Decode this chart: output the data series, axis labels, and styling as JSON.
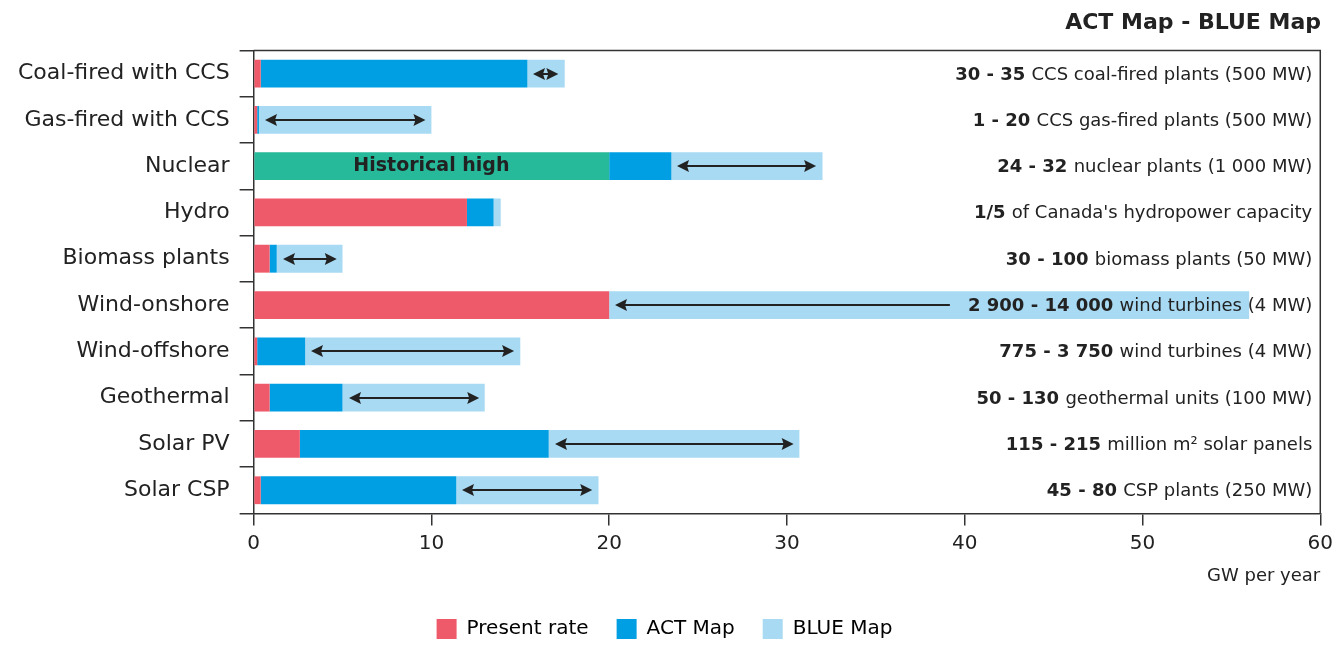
{
  "chart_data": {
    "type": "bar",
    "orientation": "horizontal",
    "stacked": true,
    "title": "ACT Map - BLUE Map",
    "xlabel": "GW per year",
    "categories": [
      "Coal-fired with CCS",
      "Gas-fired with CCS",
      "Nuclear",
      "Hydro",
      "Biomass plants",
      "Wind-onshore",
      "Wind-offshore",
      "Geothermal",
      "Solar PV",
      "Solar CSP"
    ],
    "series": [
      {
        "name": "Present rate",
        "color": "#ef5a6a",
        "colors": [
          "#ef5a6a",
          "#ef5a6a",
          "#26b99a",
          "#ef5a6a",
          "#ef5a6a",
          "#ef5a6a",
          "#ef5a6a",
          "#ef5a6a",
          "#ef5a6a",
          "#ef5a6a"
        ],
        "values": [
          0.4,
          0.2,
          20,
          12,
          0.9,
          20,
          0.2,
          0.9,
          2.6,
          0.4
        ]
      },
      {
        "name": "ACT Map",
        "color": "#009fe3",
        "values": [
          15,
          0.1,
          3.5,
          1.5,
          0.4,
          0,
          2.7,
          4.1,
          14,
          11
        ]
      },
      {
        "name": "BLUE Map",
        "color": "#a8daf3",
        "values": [
          2.1,
          9.7,
          8.5,
          0.4,
          3.7,
          36,
          12.1,
          8,
          14.1,
          8
        ]
      }
    ],
    "xlim": [
      0,
      60
    ],
    "xticks": [
      0,
      10,
      20,
      30,
      40,
      50,
      60
    ],
    "grid": false,
    "legend": "bottom",
    "annotations": [
      {
        "text": "Historical high",
        "x": 10,
        "y": "Nuclear"
      },
      "30 - 35 CCS coal-fired plants (500 MW)",
      "1 - 20 CCS gas-fired plants (500 MW)",
      "24 - 32 nuclear plants (1 000 MW)",
      "1/5 of Canada's hydropower capacity",
      "30 - 100 biomass plants (50 MW)",
      "2 900 - 14 000 wind turbines (4 MW)",
      "775 - 3 750 wind turbines (4 MW)",
      "50 - 130 geothermal units (100 MW)",
      "115 - 215 million m² solar panels",
      "45 - 80 CSP plants (250 MW)"
    ]
  }
}
